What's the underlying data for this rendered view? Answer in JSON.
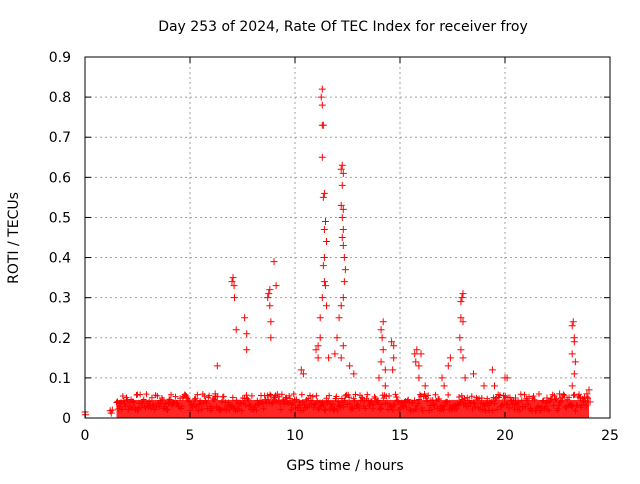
{
  "chart_data": {
    "type": "scatter",
    "title": "Day 253 of 2024, Rate Of TEC Index for receiver froy",
    "xlabel": "GPS time / hours",
    "ylabel": "ROTI / TECUs",
    "xlim": [
      0,
      25
    ],
    "ylim": [
      0,
      0.9
    ],
    "xticks": [
      0,
      5,
      10,
      15,
      20,
      25
    ],
    "yticks": [
      0,
      0.1,
      0.2,
      0.3,
      0.4,
      0.5,
      0.6,
      0.7,
      0.8,
      0.9
    ],
    "grid": true,
    "marker": "+",
    "color": "#ff0000",
    "series": [
      {
        "name": "",
        "points": [
          [
            0.0,
            0.015
          ],
          [
            0.02,
            0.008
          ],
          [
            1.2,
            0.018
          ],
          [
            1.25,
            0.012
          ],
          [
            1.3,
            0.02
          ],
          [
            2.5,
            0.02
          ],
          [
            4.0,
            0.04
          ],
          [
            6.2,
            0.06
          ],
          [
            6.3,
            0.13
          ],
          [
            7.0,
            0.34
          ],
          [
            7.05,
            0.35
          ],
          [
            7.1,
            0.33
          ],
          [
            7.12,
            0.3
          ],
          [
            7.2,
            0.22
          ],
          [
            7.6,
            0.25
          ],
          [
            7.7,
            0.21
          ],
          [
            7.7,
            0.17
          ],
          [
            8.7,
            0.3
          ],
          [
            8.75,
            0.31
          ],
          [
            8.8,
            0.32
          ],
          [
            8.8,
            0.28
          ],
          [
            8.85,
            0.24
          ],
          [
            8.85,
            0.2
          ],
          [
            9.0,
            0.39
          ],
          [
            9.1,
            0.33
          ],
          [
            10.3,
            0.12
          ],
          [
            10.4,
            0.11
          ],
          [
            11.25,
            0.8
          ],
          [
            11.3,
            0.82
          ],
          [
            11.3,
            0.78
          ],
          [
            11.35,
            0.73
          ],
          [
            11.3,
            0.73
          ],
          [
            11.3,
            0.65
          ],
          [
            11.4,
            0.56
          ],
          [
            11.35,
            0.55
          ],
          [
            11.45,
            0.49
          ],
          [
            11.4,
            0.47
          ],
          [
            11.5,
            0.44
          ],
          [
            11.4,
            0.4
          ],
          [
            11.35,
            0.38
          ],
          [
            11.4,
            0.34
          ],
          [
            11.45,
            0.33
          ],
          [
            11.3,
            0.3
          ],
          [
            11.5,
            0.28
          ],
          [
            11.2,
            0.25
          ],
          [
            11.2,
            0.2
          ],
          [
            11.1,
            0.18
          ],
          [
            11.0,
            0.17
          ],
          [
            11.1,
            0.15
          ],
          [
            11.6,
            0.15
          ],
          [
            12.2,
            0.62
          ],
          [
            12.25,
            0.63
          ],
          [
            12.3,
            0.61
          ],
          [
            12.25,
            0.58
          ],
          [
            12.2,
            0.53
          ],
          [
            12.3,
            0.52
          ],
          [
            12.25,
            0.5
          ],
          [
            12.3,
            0.47
          ],
          [
            12.25,
            0.45
          ],
          [
            12.3,
            0.43
          ],
          [
            12.35,
            0.4
          ],
          [
            12.4,
            0.37
          ],
          [
            12.35,
            0.34
          ],
          [
            12.3,
            0.3
          ],
          [
            12.2,
            0.28
          ],
          [
            12.1,
            0.25
          ],
          [
            12.0,
            0.2
          ],
          [
            12.3,
            0.18
          ],
          [
            11.9,
            0.16
          ],
          [
            12.2,
            0.15
          ],
          [
            12.6,
            0.13
          ],
          [
            12.8,
            0.11
          ],
          [
            14.1,
            0.22
          ],
          [
            14.2,
            0.24
          ],
          [
            14.15,
            0.2
          ],
          [
            14.2,
            0.17
          ],
          [
            14.1,
            0.14
          ],
          [
            14.3,
            0.12
          ],
          [
            14.0,
            0.1
          ],
          [
            14.3,
            0.08
          ],
          [
            14.6,
            0.19
          ],
          [
            14.7,
            0.18
          ],
          [
            14.7,
            0.15
          ],
          [
            14.65,
            0.12
          ],
          [
            15.7,
            0.16
          ],
          [
            15.8,
            0.17
          ],
          [
            15.75,
            0.14
          ],
          [
            15.9,
            0.13
          ],
          [
            16.0,
            0.16
          ],
          [
            15.9,
            0.1
          ],
          [
            16.2,
            0.08
          ],
          [
            17.0,
            0.1
          ],
          [
            17.1,
            0.08
          ],
          [
            17.3,
            0.13
          ],
          [
            17.4,
            0.15
          ],
          [
            17.9,
            0.29
          ],
          [
            18.0,
            0.31
          ],
          [
            17.95,
            0.3
          ],
          [
            17.9,
            0.25
          ],
          [
            18.0,
            0.24
          ],
          [
            17.85,
            0.2
          ],
          [
            17.9,
            0.17
          ],
          [
            18.0,
            0.15
          ],
          [
            18.1,
            0.1
          ],
          [
            18.5,
            0.11
          ],
          [
            19.0,
            0.08
          ],
          [
            19.4,
            0.12
          ],
          [
            19.5,
            0.08
          ],
          [
            20.0,
            0.1
          ],
          [
            20.1,
            0.1
          ],
          [
            20.5,
            0.05
          ],
          [
            22.0,
            0.05
          ],
          [
            22.6,
            0.06
          ],
          [
            23.2,
            0.23
          ],
          [
            23.25,
            0.24
          ],
          [
            23.3,
            0.2
          ],
          [
            23.3,
            0.19
          ],
          [
            23.2,
            0.16
          ],
          [
            23.35,
            0.14
          ],
          [
            23.3,
            0.11
          ],
          [
            23.2,
            0.08
          ],
          [
            23.6,
            0.05
          ],
          [
            23.9,
            0.06
          ],
          [
            24.0,
            0.07
          ],
          [
            24.05,
            0.04
          ]
        ],
        "dense_band": {
          "x_from": 1.5,
          "x_to": 24.0,
          "y_from": 0.0,
          "y_to": 0.06
        }
      }
    ]
  }
}
